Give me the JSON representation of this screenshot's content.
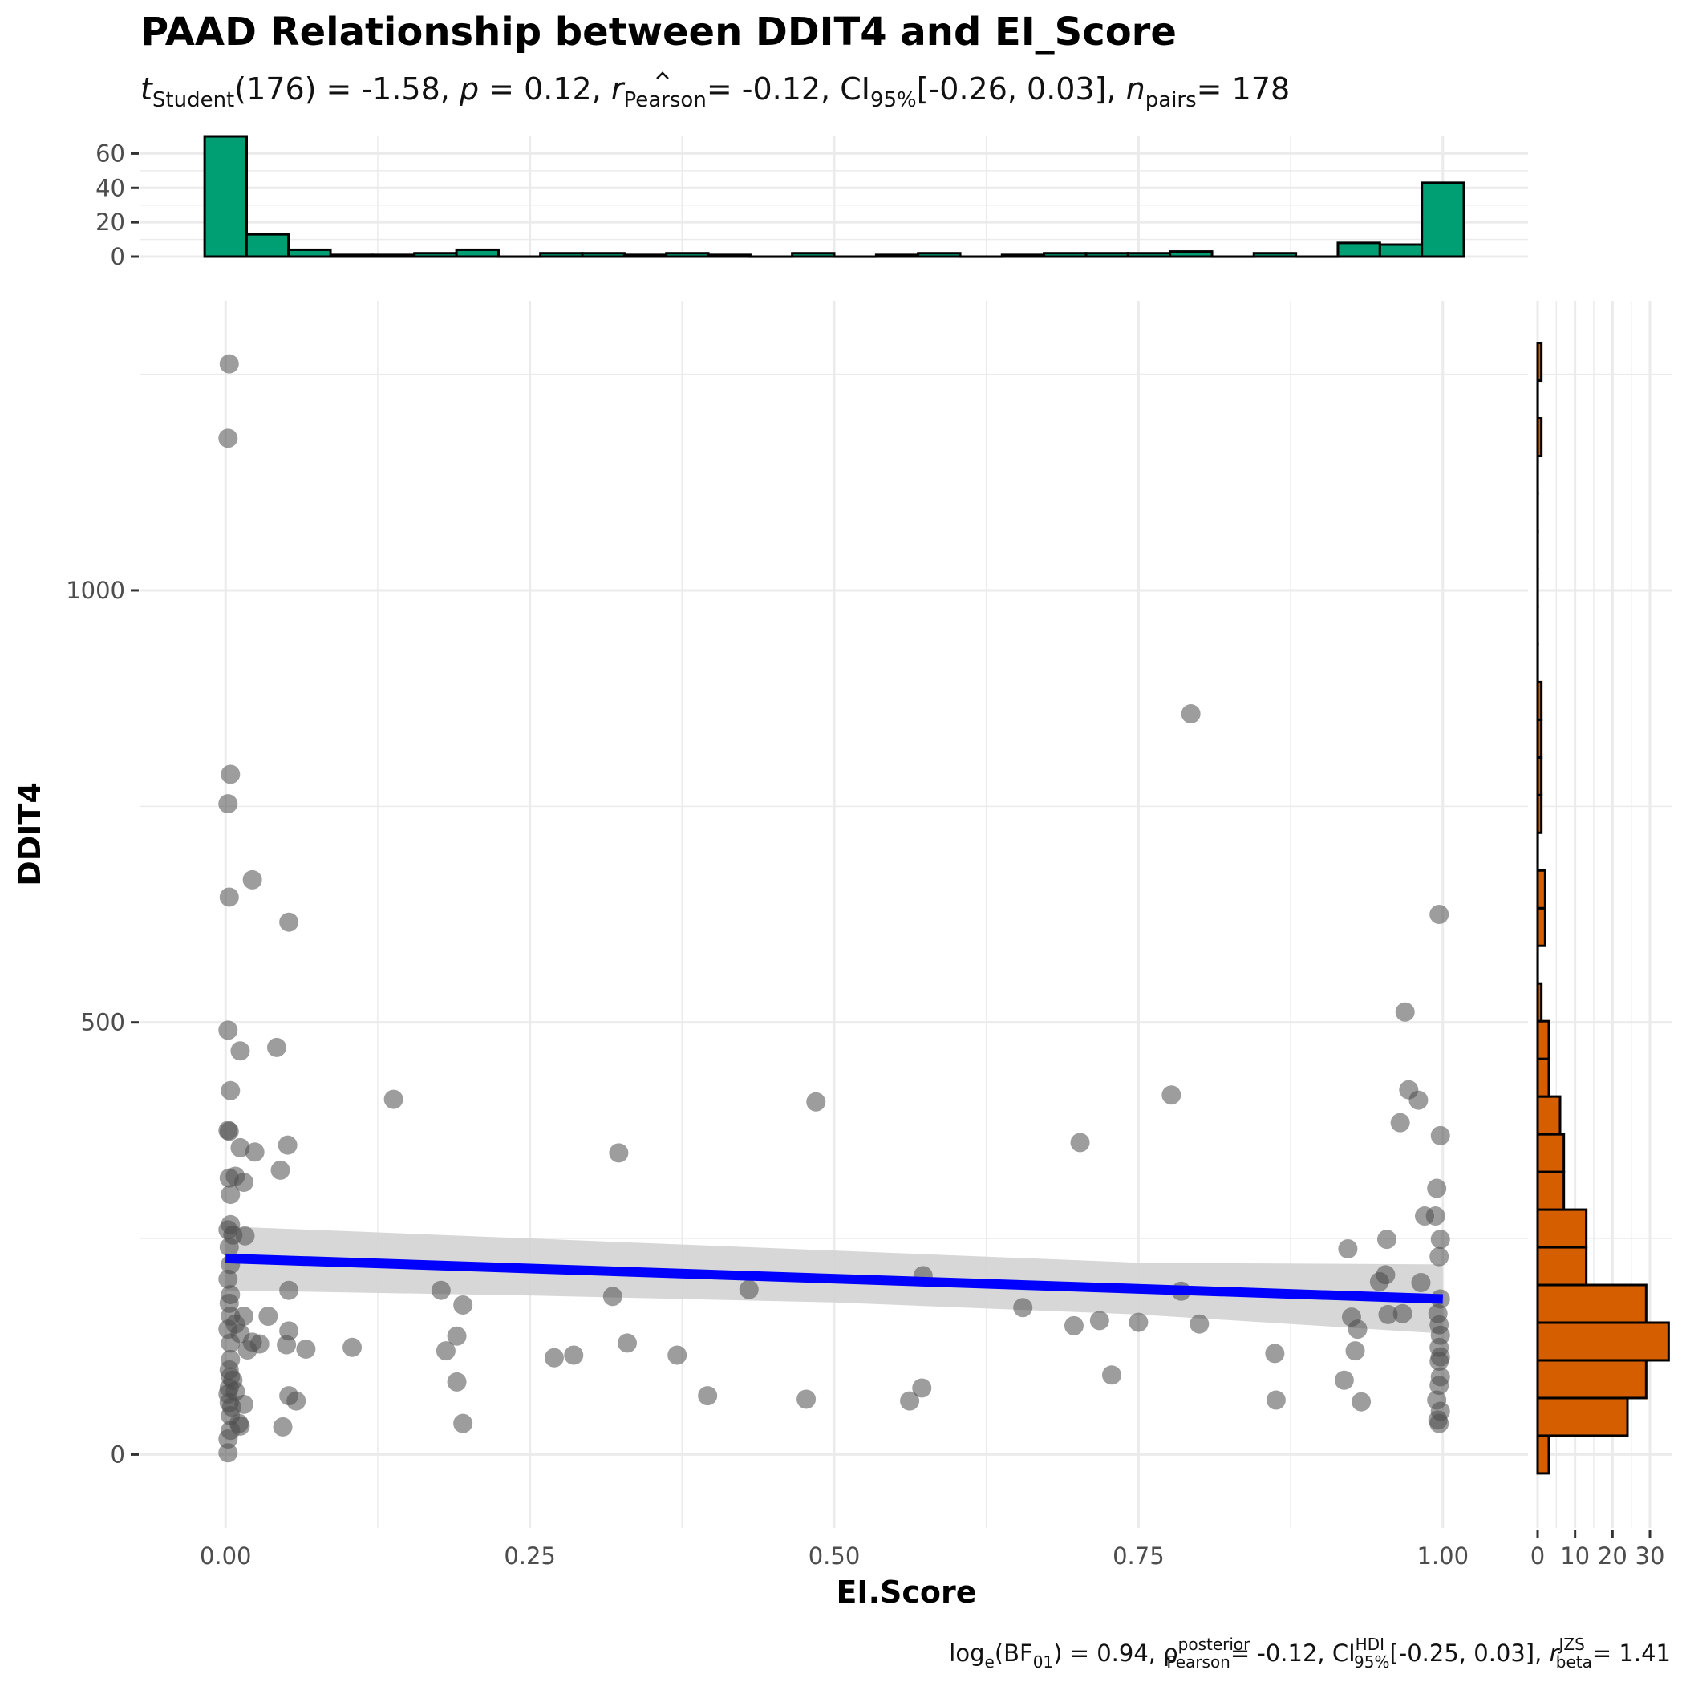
{
  "title": "PAAD Relationship between DDIT4 and EI_Score",
  "subtitle": {
    "t_label": "t",
    "t_sub": "Student",
    "t_value": "(176) = -1.58,",
    "p_label": "p",
    "p_value": "= 0.12,",
    "r_label": "r",
    "r_sub": "Pearson",
    "r_value": "= -0.12, CI",
    "ci_sub": "95%",
    "ci_value": "[-0.26, 0.03],",
    "n_label": "n",
    "n_sub": "pairs",
    "n_value": "= 178"
  },
  "caption": {
    "log_label": "log",
    "log_sub": "e",
    "bf_open": "(BF",
    "bf_sub": "01",
    "bf_value": ") = 0.94,",
    "rho_label": "ρ",
    "rho_sup": "posterior",
    "rho_sub": "Pearson",
    "rho_value": "= -0.12, CI",
    "ci_sup": "HDI",
    "ci_sub": "95%",
    "ci_value": "[-0.25, 0.03],",
    "r_label": "r",
    "r_sup": "JZS",
    "r_sub": "beta",
    "r_value": "= 1.41"
  },
  "chart_data": {
    "type": "scatter",
    "xlabel": "EI.Score",
    "ylabel": "DDIT4",
    "xlim": [
      -0.07,
      1.07
    ],
    "ylim": [
      -85,
      1335
    ],
    "x_ticks": [
      {
        "value": 0,
        "label": "0.00"
      },
      {
        "value": 0.25,
        "label": "0.25"
      },
      {
        "value": 0.5,
        "label": "0.50"
      },
      {
        "value": 0.75,
        "label": "0.75"
      },
      {
        "value": 1,
        "label": "1.00"
      }
    ],
    "y_ticks": [
      {
        "value": 0,
        "label": "0"
      },
      {
        "value": 500,
        "label": "500"
      },
      {
        "value": 1000,
        "label": "1000"
      }
    ],
    "grid": true,
    "point_color": "#4d4d4d",
    "fit_line": {
      "x": [
        0,
        1
      ],
      "y": [
        227,
        180
      ],
      "color": "#0000ff"
    },
    "confidence_band": {
      "x": [
        0,
        0.25,
        0.5,
        0.75,
        1
      ],
      "lower": [
        190,
        184,
        176,
        162,
        140
      ],
      "upper": [
        264,
        250,
        236,
        222,
        220
      ],
      "color": "#d3d3d3"
    },
    "points": [
      [
        0.003,
        1262
      ],
      [
        0.002,
        1176
      ],
      [
        0.004,
        787
      ],
      [
        0.002,
        753
      ],
      [
        0.003,
        645
      ],
      [
        0.022,
        665
      ],
      [
        0.052,
        616
      ],
      [
        0.002,
        491
      ],
      [
        0.012,
        467
      ],
      [
        0.042,
        471
      ],
      [
        0.004,
        421
      ],
      [
        0.002,
        375
      ],
      [
        0.003,
        374
      ],
      [
        0.012,
        355
      ],
      [
        0.024,
        350
      ],
      [
        0.051,
        358
      ],
      [
        0.045,
        329
      ],
      [
        0.003,
        320
      ],
      [
        0.008,
        322
      ],
      [
        0.015,
        315
      ],
      [
        0.004,
        301
      ],
      [
        0.002,
        260
      ],
      [
        0.004,
        266
      ],
      [
        0.006,
        254
      ],
      [
        0.016,
        253
      ],
      [
        0.003,
        240
      ],
      [
        0.004,
        220
      ],
      [
        0.002,
        203
      ],
      [
        0.004,
        185
      ],
      [
        0.003,
        175
      ],
      [
        0.052,
        190
      ],
      [
        0.004,
        160
      ],
      [
        0.008,
        151
      ],
      [
        0.015,
        160
      ],
      [
        0.035,
        160
      ],
      [
        0.002,
        145
      ],
      [
        0.012,
        140
      ],
      [
        0.052,
        143
      ],
      [
        0.004,
        129
      ],
      [
        0.022,
        130
      ],
      [
        0.028,
        128
      ],
      [
        0.05,
        127
      ],
      [
        0.018,
        121
      ],
      [
        0.066,
        122
      ],
      [
        0.004,
        110
      ],
      [
        0.003,
        98
      ],
      [
        0.004,
        90
      ],
      [
        0.006,
        86
      ],
      [
        0.003,
        77
      ],
      [
        0.002,
        70
      ],
      [
        0.008,
        73
      ],
      [
        0.003,
        60
      ],
      [
        0.005,
        55
      ],
      [
        0.015,
        58
      ],
      [
        0.052,
        68
      ],
      [
        0.058,
        62
      ],
      [
        0.004,
        45
      ],
      [
        0.011,
        36
      ],
      [
        0.004,
        28
      ],
      [
        0.002,
        18
      ],
      [
        0.012,
        33
      ],
      [
        0.047,
        32
      ],
      [
        0.002,
        2
      ],
      [
        0.138,
        411
      ],
      [
        0.104,
        124
      ],
      [
        0.177,
        190
      ],
      [
        0.181,
        120
      ],
      [
        0.19,
        137
      ],
      [
        0.195,
        173
      ],
      [
        0.19,
        84
      ],
      [
        0.195,
        36
      ],
      [
        0.27,
        112
      ],
      [
        0.286,
        115
      ],
      [
        0.318,
        183
      ],
      [
        0.323,
        349
      ],
      [
        0.33,
        129
      ],
      [
        0.371,
        115
      ],
      [
        0.396,
        68
      ],
      [
        0.43,
        191
      ],
      [
        0.477,
        64
      ],
      [
        0.485,
        408
      ],
      [
        0.562,
        62
      ],
      [
        0.572,
        77
      ],
      [
        0.573,
        207
      ],
      [
        0.655,
        170
      ],
      [
        0.697,
        149
      ],
      [
        0.702,
        361
      ],
      [
        0.718,
        155
      ],
      [
        0.728,
        92
      ],
      [
        0.75,
        153
      ],
      [
        0.777,
        416
      ],
      [
        0.785,
        189
      ],
      [
        0.793,
        857
      ],
      [
        0.8,
        151
      ],
      [
        0.862,
        117
      ],
      [
        0.863,
        63
      ],
      [
        0.919,
        86
      ],
      [
        0.922,
        238
      ],
      [
        0.925,
        159
      ],
      [
        0.93,
        145
      ],
      [
        0.928,
        120
      ],
      [
        0.933,
        61
      ],
      [
        0.948,
        200
      ],
      [
        0.953,
        208
      ],
      [
        0.954,
        249
      ],
      [
        0.955,
        162
      ],
      [
        0.965,
        384
      ],
      [
        0.967,
        163
      ],
      [
        0.969,
        512
      ],
      [
        0.972,
        422
      ],
      [
        0.98,
        410
      ],
      [
        0.982,
        199
      ],
      [
        0.985,
        276
      ],
      [
        0.994,
        276
      ],
      [
        0.995,
        308
      ],
      [
        0.997,
        625
      ],
      [
        0.998,
        369
      ],
      [
        0.998,
        249
      ],
      [
        0.997,
        229
      ],
      [
        0.998,
        180
      ],
      [
        0.996,
        163
      ],
      [
        0.997,
        150
      ],
      [
        0.998,
        138
      ],
      [
        0.997,
        124
      ],
      [
        0.998,
        113
      ],
      [
        0.997,
        108
      ],
      [
        0.998,
        90
      ],
      [
        0.997,
        80
      ],
      [
        0.995,
        63
      ],
      [
        0.998,
        50
      ],
      [
        0.996,
        40
      ],
      [
        0.997,
        36
      ]
    ],
    "x_histogram": {
      "color": "#009e73",
      "ylim": [
        0,
        70
      ],
      "ticks": [
        {
          "value": 0,
          "label": "0"
        },
        {
          "value": 20,
          "label": "20"
        },
        {
          "value": 40,
          "label": "40"
        },
        {
          "value": 60,
          "label": "60"
        }
      ],
      "bin_width": 0.0345,
      "bins": [
        {
          "start": -0.0172,
          "count": 70
        },
        {
          "start": 0.0172,
          "count": 13
        },
        {
          "start": 0.0517,
          "count": 4
        },
        {
          "start": 0.0862,
          "count": 1
        },
        {
          "start": 0.1207,
          "count": 1
        },
        {
          "start": 0.1552,
          "count": 2
        },
        {
          "start": 0.1897,
          "count": 4
        },
        {
          "start": 0.2241,
          "count": 0
        },
        {
          "start": 0.2586,
          "count": 2
        },
        {
          "start": 0.2931,
          "count": 2
        },
        {
          "start": 0.3276,
          "count": 1
        },
        {
          "start": 0.3621,
          "count": 2
        },
        {
          "start": 0.3966,
          "count": 1
        },
        {
          "start": 0.431,
          "count": 0
        },
        {
          "start": 0.4655,
          "count": 2
        },
        {
          "start": 0.5,
          "count": 0
        },
        {
          "start": 0.5345,
          "count": 1
        },
        {
          "start": 0.569,
          "count": 2
        },
        {
          "start": 0.6034,
          "count": 0
        },
        {
          "start": 0.6379,
          "count": 1
        },
        {
          "start": 0.6724,
          "count": 2
        },
        {
          "start": 0.7069,
          "count": 2
        },
        {
          "start": 0.7414,
          "count": 2
        },
        {
          "start": 0.7759,
          "count": 3
        },
        {
          "start": 0.8103,
          "count": 0
        },
        {
          "start": 0.8448,
          "count": 2
        },
        {
          "start": 0.8793,
          "count": 0
        },
        {
          "start": 0.9138,
          "count": 8
        },
        {
          "start": 0.9483,
          "count": 7
        },
        {
          "start": 0.9828,
          "count": 43
        }
      ]
    },
    "y_histogram": {
      "color": "#d55e00",
      "xlim": [
        0,
        36
      ],
      "ticks": [
        {
          "value": 0,
          "label": "0"
        },
        {
          "value": 10,
          "label": "10"
        },
        {
          "value": 20,
          "label": "20"
        },
        {
          "value": 30,
          "label": "30"
        }
      ],
      "bin_width": 43.6,
      "bins": [
        {
          "start": -21.8,
          "count": 3
        },
        {
          "start": 21.8,
          "count": 24
        },
        {
          "start": 65.4,
          "count": 29
        },
        {
          "start": 109,
          "count": 35
        },
        {
          "start": 152.6,
          "count": 29
        },
        {
          "start": 196.2,
          "count": 13
        },
        {
          "start": 239.8,
          "count": 13
        },
        {
          "start": 283.4,
          "count": 7
        },
        {
          "start": 327,
          "count": 7
        },
        {
          "start": 370.6,
          "count": 6
        },
        {
          "start": 414.2,
          "count": 3
        },
        {
          "start": 457.8,
          "count": 3
        },
        {
          "start": 501.4,
          "count": 1
        },
        {
          "start": 545,
          "count": 0
        },
        {
          "start": 588.6,
          "count": 2
        },
        {
          "start": 632.2,
          "count": 2
        },
        {
          "start": 675.8,
          "count": 0
        },
        {
          "start": 719.4,
          "count": 1
        },
        {
          "start": 763,
          "count": 1
        },
        {
          "start": 806.6,
          "count": 1
        },
        {
          "start": 850.2,
          "count": 1
        },
        {
          "start": 893.8,
          "count": 0
        },
        {
          "start": 937.4,
          "count": 0
        },
        {
          "start": 981,
          "count": 0
        },
        {
          "start": 1024.6,
          "count": 0
        },
        {
          "start": 1068.2,
          "count": 0
        },
        {
          "start": 1111.8,
          "count": 0
        },
        {
          "start": 1155.4,
          "count": 1
        },
        {
          "start": 1199,
          "count": 0
        },
        {
          "start": 1242.6,
          "count": 1
        }
      ]
    }
  }
}
